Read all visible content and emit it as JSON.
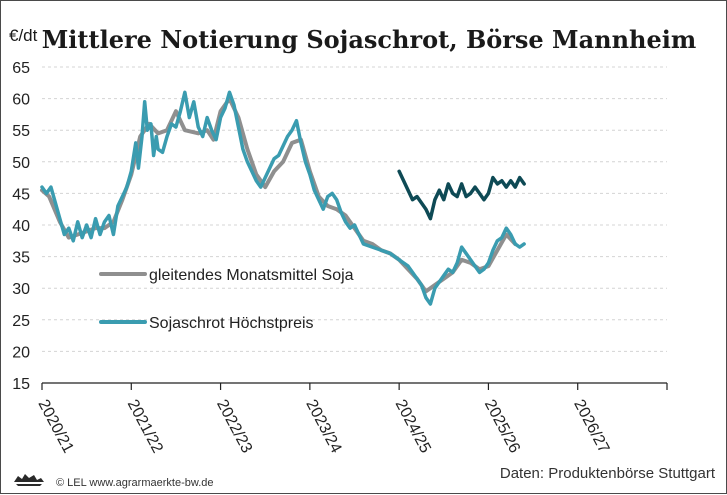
{
  "chart_data": {
    "type": "line",
    "title": "Mittlere Notierung Sojaschrot, Börse Mannheim",
    "ylabel": "€/dt",
    "ylim": [
      15,
      65
    ],
    "yticks": [
      15,
      20,
      25,
      30,
      35,
      40,
      45,
      50,
      55,
      60,
      65
    ],
    "categories": [
      "2020/21",
      "2021/22",
      "2022/23",
      "2023/24",
      "2024/25",
      "2025/26",
      "2026/27"
    ],
    "grid": true,
    "legend_position": "center-left",
    "series": [
      {
        "name": "gleitendes Monatsmittel Soja",
        "color": "#8f8f8f",
        "values": [
          [
            0.0,
            45.5
          ],
          [
            0.08,
            44.5
          ],
          [
            0.2,
            40.5
          ],
          [
            0.3,
            38.0
          ],
          [
            0.4,
            38.5
          ],
          [
            0.5,
            39.0
          ],
          [
            0.6,
            39.5
          ],
          [
            0.7,
            39.5
          ],
          [
            0.8,
            40.5
          ],
          [
            0.9,
            44.0
          ],
          [
            1.0,
            48.0
          ],
          [
            1.1,
            54.0
          ],
          [
            1.2,
            56.0
          ],
          [
            1.3,
            54.5
          ],
          [
            1.4,
            55.0
          ],
          [
            1.5,
            58.0
          ],
          [
            1.6,
            55.0
          ],
          [
            1.75,
            54.5
          ],
          [
            1.85,
            55.0
          ],
          [
            1.92,
            53.5
          ],
          [
            2.0,
            58.0
          ],
          [
            2.1,
            60.0
          ],
          [
            2.2,
            57.0
          ],
          [
            2.3,
            52.0
          ],
          [
            2.4,
            48.0
          ],
          [
            2.5,
            46.0
          ],
          [
            2.6,
            48.5
          ],
          [
            2.7,
            50.0
          ],
          [
            2.8,
            53.0
          ],
          [
            2.9,
            53.5
          ],
          [
            3.0,
            48.5
          ],
          [
            3.1,
            44.5
          ],
          [
            3.2,
            43.0
          ],
          [
            3.3,
            42.5
          ],
          [
            3.4,
            41.5
          ],
          [
            3.5,
            39.5
          ],
          [
            3.6,
            37.5
          ],
          [
            3.7,
            37.0
          ],
          [
            3.8,
            36.0
          ],
          [
            3.9,
            35.5
          ],
          [
            4.0,
            34.5
          ],
          [
            4.1,
            33.0
          ],
          [
            4.2,
            31.5
          ],
          [
            4.3,
            29.5
          ],
          [
            4.4,
            30.5
          ],
          [
            4.5,
            31.5
          ],
          [
            4.6,
            32.5
          ],
          [
            4.7,
            34.5
          ],
          [
            4.8,
            34.0
          ],
          [
            4.9,
            33.0
          ],
          [
            5.0,
            33.5
          ],
          [
            5.1,
            36.0
          ],
          [
            5.2,
            38.5
          ],
          [
            5.3,
            37.0
          ]
        ]
      },
      {
        "name": "Sojaschrot Höchstpreis",
        "color": "#3a9cb0",
        "values": [
          [
            0.0,
            46.0
          ],
          [
            0.05,
            45.0
          ],
          [
            0.1,
            46.0
          ],
          [
            0.15,
            43.5
          ],
          [
            0.2,
            41.0
          ],
          [
            0.25,
            38.5
          ],
          [
            0.3,
            39.5
          ],
          [
            0.35,
            37.5
          ],
          [
            0.4,
            40.5
          ],
          [
            0.45,
            38.0
          ],
          [
            0.5,
            40.0
          ],
          [
            0.55,
            38.0
          ],
          [
            0.6,
            41.0
          ],
          [
            0.65,
            38.5
          ],
          [
            0.7,
            40.5
          ],
          [
            0.75,
            41.5
          ],
          [
            0.8,
            38.5
          ],
          [
            0.85,
            43.0
          ],
          [
            0.9,
            44.5
          ],
          [
            0.95,
            46.0
          ],
          [
            1.0,
            48.5
          ],
          [
            1.05,
            53.0
          ],
          [
            1.08,
            49.0
          ],
          [
            1.12,
            54.0
          ],
          [
            1.15,
            59.5
          ],
          [
            1.18,
            55.0
          ],
          [
            1.22,
            56.0
          ],
          [
            1.25,
            51.0
          ],
          [
            1.28,
            54.0
          ],
          [
            1.3,
            52.0
          ],
          [
            1.35,
            51.5
          ],
          [
            1.4,
            54.0
          ],
          [
            1.45,
            56.0
          ],
          [
            1.5,
            55.5
          ],
          [
            1.55,
            58.0
          ],
          [
            1.6,
            61.0
          ],
          [
            1.65,
            57.0
          ],
          [
            1.7,
            59.5
          ],
          [
            1.75,
            55.5
          ],
          [
            1.8,
            54.0
          ],
          [
            1.85,
            57.0
          ],
          [
            1.9,
            55.0
          ],
          [
            1.95,
            53.5
          ],
          [
            2.0,
            57.0
          ],
          [
            2.05,
            58.5
          ],
          [
            2.1,
            61.0
          ],
          [
            2.15,
            59.0
          ],
          [
            2.2,
            55.5
          ],
          [
            2.25,
            52.0
          ],
          [
            2.3,
            50.0
          ],
          [
            2.35,
            48.5
          ],
          [
            2.4,
            47.0
          ],
          [
            2.45,
            46.0
          ],
          [
            2.5,
            47.5
          ],
          [
            2.55,
            49.0
          ],
          [
            2.6,
            50.5
          ],
          [
            2.65,
            51.0
          ],
          [
            2.7,
            52.5
          ],
          [
            2.75,
            54.0
          ],
          [
            2.8,
            55.0
          ],
          [
            2.85,
            56.5
          ],
          [
            2.9,
            53.0
          ],
          [
            2.95,
            50.0
          ],
          [
            3.0,
            48.0
          ],
          [
            3.05,
            45.5
          ],
          [
            3.1,
            44.0
          ],
          [
            3.15,
            42.5
          ],
          [
            3.2,
            44.5
          ],
          [
            3.25,
            45.0
          ],
          [
            3.3,
            44.0
          ],
          [
            3.35,
            42.0
          ],
          [
            3.4,
            40.5
          ],
          [
            3.45,
            39.5
          ],
          [
            3.5,
            40.0
          ],
          [
            3.55,
            38.5
          ],
          [
            3.6,
            37.0
          ],
          [
            3.7,
            36.5
          ],
          [
            3.8,
            36.0
          ],
          [
            3.9,
            35.5
          ],
          [
            4.0,
            34.5
          ],
          [
            4.05,
            34.0
          ],
          [
            4.1,
            33.5
          ],
          [
            4.15,
            32.5
          ],
          [
            4.2,
            31.5
          ],
          [
            4.25,
            30.5
          ],
          [
            4.3,
            28.5
          ],
          [
            4.35,
            27.5
          ],
          [
            4.4,
            30.0
          ],
          [
            4.45,
            31.0
          ],
          [
            4.5,
            32.0
          ],
          [
            4.55,
            33.0
          ],
          [
            4.6,
            32.5
          ],
          [
            4.65,
            34.0
          ],
          [
            4.7,
            36.5
          ],
          [
            4.75,
            35.5
          ],
          [
            4.8,
            34.5
          ],
          [
            4.85,
            33.5
          ],
          [
            4.9,
            32.5
          ],
          [
            4.95,
            33.0
          ],
          [
            5.0,
            34.0
          ],
          [
            5.05,
            36.0
          ],
          [
            5.1,
            37.5
          ],
          [
            5.15,
            38.0
          ],
          [
            5.2,
            39.5
          ],
          [
            5.25,
            38.5
          ],
          [
            5.3,
            37.0
          ],
          [
            5.35,
            36.5
          ],
          [
            5.4,
            37.0
          ]
        ]
      },
      {
        "name": "",
        "color": "#0e4a55",
        "values": [
          [
            4.0,
            48.5
          ],
          [
            4.05,
            47.0
          ],
          [
            4.1,
            45.5
          ],
          [
            4.15,
            44.0
          ],
          [
            4.2,
            44.5
          ],
          [
            4.25,
            43.5
          ],
          [
            4.3,
            42.5
          ],
          [
            4.35,
            41.0
          ],
          [
            4.4,
            44.0
          ],
          [
            4.45,
            45.5
          ],
          [
            4.5,
            44.0
          ],
          [
            4.55,
            46.5
          ],
          [
            4.6,
            45.0
          ],
          [
            4.65,
            44.5
          ],
          [
            4.7,
            46.5
          ],
          [
            4.75,
            44.5
          ],
          [
            4.8,
            45.0
          ],
          [
            4.85,
            46.0
          ],
          [
            4.9,
            45.0
          ],
          [
            4.95,
            44.0
          ],
          [
            5.0,
            45.0
          ],
          [
            5.05,
            47.5
          ],
          [
            5.1,
            46.5
          ],
          [
            5.15,
            47.0
          ],
          [
            5.2,
            46.0
          ],
          [
            5.25,
            47.0
          ],
          [
            5.3,
            46.0
          ],
          [
            5.35,
            47.5
          ],
          [
            5.4,
            46.5
          ]
        ]
      }
    ]
  },
  "footer": {
    "credit": "© LEL www.agrarmaerkte-bw.de",
    "source": "Daten: Produktenbörse Stuttgart"
  },
  "logo": {
    "icon": "lion-icon",
    "color": "#2a2a2a"
  }
}
